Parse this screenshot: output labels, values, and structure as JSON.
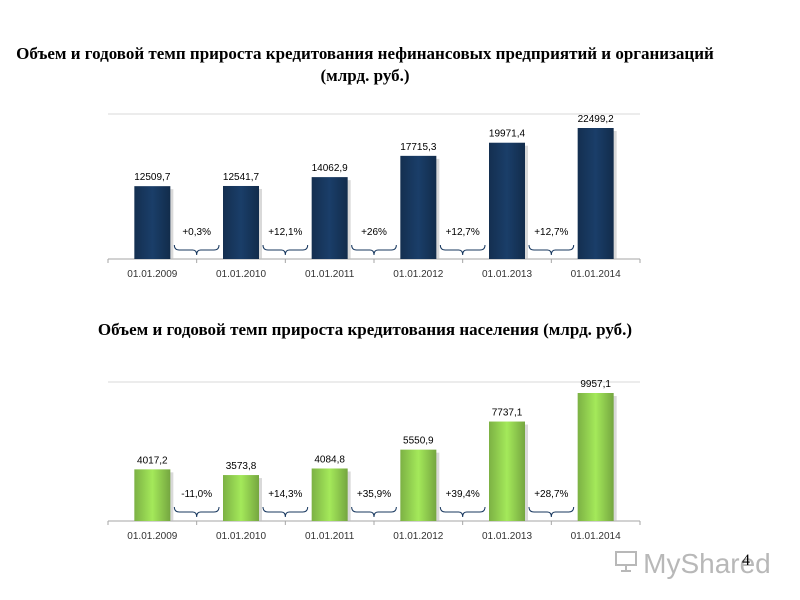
{
  "chart_data": [
    {
      "type": "bar",
      "title": "Объем и годовой темп прироста кредитования нефинансовых предприятий и организаций (млрд. руб.)",
      "categories": [
        "01.01.2009",
        "01.01.2010",
        "01.01.2011",
        "01.01.2012",
        "01.01.2013",
        "01.01.2014"
      ],
      "values": [
        12509.7,
        12541.7,
        14062.9,
        17715.3,
        19971.4,
        22499.2
      ],
      "value_labels": [
        "12509,7",
        "12541,7",
        "14062,9",
        "17715,3",
        "19971,4",
        "22499,2"
      ],
      "growth_labels": [
        "+0,3%",
        "+12,1%",
        "+26%",
        "+12,7%",
        "+12,7%"
      ],
      "color": "#17375e",
      "xlabel": "",
      "ylabel": ""
    },
    {
      "type": "bar",
      "title": "Объем и годовой темп прироста кредитования населения (млрд. руб.)",
      "categories": [
        "01.01.2009",
        "01.01.2010",
        "01.01.2011",
        "01.01.2012",
        "01.01.2013",
        "01.01.2014"
      ],
      "values": [
        4017.2,
        3573.8,
        4084.8,
        5550.9,
        7737.1,
        9957.1
      ],
      "value_labels": [
        "4017,2",
        "3573,8",
        "4084,8",
        "5550,9",
        "7737,1",
        "9957,1"
      ],
      "growth_labels": [
        "-11,0%",
        "+14,3%",
        "+35,9%",
        "+39,4%",
        "+28,7%"
      ],
      "color": "#92d050",
      "xlabel": "",
      "ylabel": ""
    }
  ],
  "watermark": "MyShared",
  "page_number": "4"
}
